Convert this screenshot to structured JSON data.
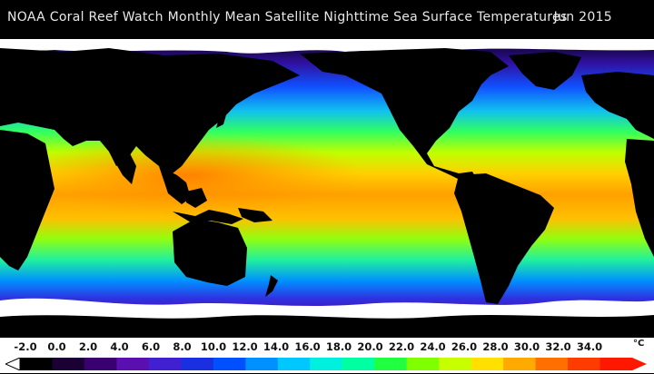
{
  "header": {
    "title": "NOAA Coral Reef Watch Monthly Mean Satellite Nighttime Sea Surface Temperatures",
    "date": "Jun 2015"
  },
  "legend": {
    "unit": "°C",
    "ticks": [
      "-2.0",
      "0.0",
      "2.0",
      "4.0",
      "6.0",
      "8.0",
      "10.0",
      "12.0",
      "14.0",
      "16.0",
      "18.0",
      "20.0",
      "22.0",
      "24.0",
      "26.0",
      "28.0",
      "30.0",
      "32.0",
      "34.0"
    ],
    "colors": [
      "#000000",
      "#1a0033",
      "#3a0070",
      "#5a10b0",
      "#4020d0",
      "#1a30e0",
      "#0050ff",
      "#0090ff",
      "#00c8ff",
      "#00f0e0",
      "#00ffa0",
      "#20ff40",
      "#80ff00",
      "#c8ff00",
      "#ffe000",
      "#ffaa00",
      "#ff7000",
      "#ff3c00",
      "#ff1800"
    ]
  },
  "colors": {
    "land": "#000000",
    "ice": "#ffffff",
    "background": "#000000"
  }
}
